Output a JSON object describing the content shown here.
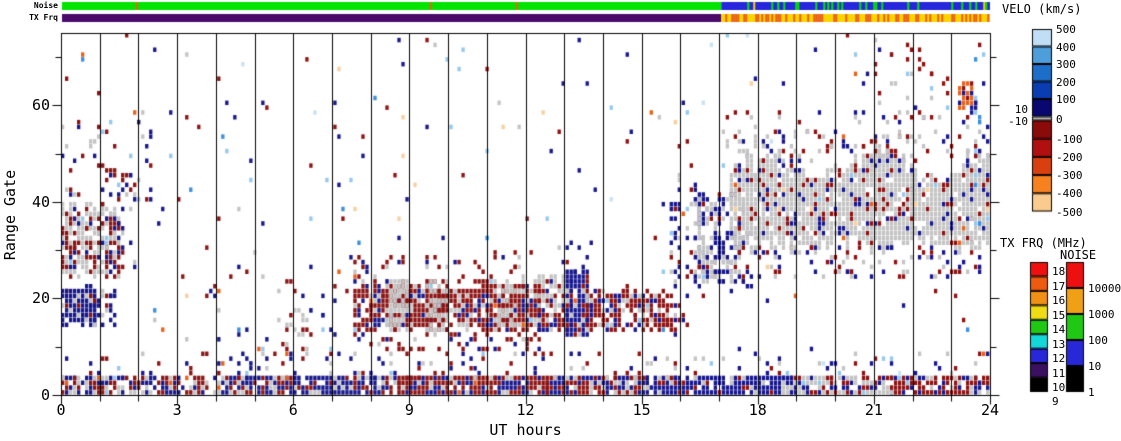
{
  "labels": {
    "noise_bar": "Noise",
    "tx_bar": "TX Frq",
    "y_axis": "Range Gate",
    "x_axis": "UT hours",
    "velo_title": "VELO (km/s)",
    "txfrq_title": "TX FRQ (MHz)",
    "noise_title": "NOISE"
  },
  "palette": {
    "navy": "#16168C",
    "darkred": "#8C1212",
    "gray": "#C4C4C4",
    "lightblue": "#96C8EE",
    "paleblue": "#C8E2F6",
    "medblue": "#3C8EDE",
    "orange": "#E8611A",
    "peach": "#F8CFA0",
    "green": "#00E400",
    "blue": "#2626DC",
    "purple": "#4A0A6A",
    "yellow": "#F8D400"
  },
  "chart_data": {
    "type": "heatmap",
    "plot_kind": "radar range-time velocity plot",
    "xlabel": "UT hours",
    "ylabel": "Range Gate",
    "xlim": [
      0,
      24
    ],
    "ylim": [
      0,
      75
    ],
    "x_major_ticks": [
      0,
      3,
      6,
      9,
      12,
      15,
      18,
      21,
      24
    ],
    "x_minor_step": 1,
    "y_major_ticks": [
      0,
      20,
      40,
      60
    ],
    "y_minor_step": 10,
    "grid": "vertical line at every hour",
    "colorbars": {
      "velo": {
        "title": "VELO (km/s)",
        "right_labels": [
          "500",
          "400",
          "300",
          "200",
          "100",
          "0",
          "-100",
          "-200",
          "-300",
          "-400",
          "-500"
        ],
        "left_labels": [
          "10",
          "-10"
        ],
        "colors": [
          "#C2DEF6",
          "#4E9EDC",
          "#1C6EC8",
          "#0A3CB2",
          "#080870",
          "#C0C0C0",
          "#8B0A0A",
          "#B01010",
          "#D84010",
          "#F5821E",
          "#FACB8E"
        ]
      },
      "tx": {
        "title": "TX FRQ (MHz)",
        "labels": [
          "18",
          "17",
          "16",
          "15",
          "14",
          "13",
          "12",
          "11",
          "10",
          "9"
        ],
        "colors": [
          "#EE1010",
          "#EE5A10",
          "#F09014",
          "#F0DC14",
          "#20C814",
          "#14D8D8",
          "#2828D8",
          "#3C1060",
          "#000000"
        ]
      },
      "noise": {
        "title": "NOISE",
        "labels": [
          "10000",
          "1000",
          "100",
          "10",
          "1"
        ],
        "colors": [
          "#EE1010",
          "#F0A014",
          "#20C814",
          "#2828D8",
          "#000000"
        ]
      }
    },
    "top_bars": {
      "noise": {
        "label": "Noise",
        "segments": [
          {
            "h0": 0,
            "h1": 17.05,
            "base": "green",
            "stripes": [
              [
                "orange",
                0.006
              ],
              [
                "blue",
                0.005
              ]
            ]
          },
          {
            "h0": 17.05,
            "h1": 24,
            "base": "blue",
            "stripes": [
              [
                "green",
                0.14
              ],
              [
                "yellow",
                0.015
              ]
            ]
          }
        ]
      },
      "tx": {
        "label": "TX Frq",
        "segments": [
          {
            "h0": 0,
            "h1": 17.05,
            "base": "purple",
            "stripes": []
          },
          {
            "h0": 17.05,
            "h1": 24,
            "base": "yellow",
            "stripes": [
              [
                "orange",
                0.45
              ]
            ]
          }
        ]
      }
    },
    "cells": {
      "cols": 232,
      "rows": 75,
      "seed": 7,
      "regions": [
        {
          "h0": 0,
          "h1": 24,
          "g0": 3,
          "g1": 75,
          "d": 0.013,
          "colors": [
            [
              "darkred",
              0.3
            ],
            [
              "navy",
              0.22
            ],
            [
              "lightblue",
              0.13
            ],
            [
              "paleblue",
              0.06
            ],
            [
              "medblue",
              0.08
            ],
            [
              "gray",
              0.09
            ],
            [
              "peach",
              0.07
            ],
            [
              "orange",
              0.05
            ]
          ]
        },
        {
          "h0": 0,
          "h1": 24,
          "g0": 3,
          "g1": 8,
          "d": 0.12,
          "colors": [
            [
              "navy",
              0.4
            ],
            [
              "darkred",
              0.3
            ],
            [
              "gray",
              0.25
            ],
            [
              "lightblue",
              0.05
            ]
          ]
        },
        {
          "h0": 17,
          "h1": 24,
          "g0": 50,
          "g1": 58,
          "d": 0.06,
          "colors": [
            [
              "gray",
              0.4
            ],
            [
              "darkred",
              0.35
            ],
            [
              "navy",
              0.25
            ]
          ]
        },
        {
          "h0": 0,
          "h1": 1.45,
          "g0": 23,
          "g1": 40,
          "d": 0.8,
          "edge_noise": 4,
          "colors": [
            [
              "gray",
              0.56
            ],
            [
              "darkred",
              0.3
            ],
            [
              "navy",
              0.12
            ],
            [
              "lightblue",
              0.02
            ]
          ]
        },
        {
          "h0": 1.2,
          "h1": 1.9,
          "g0": 26,
          "g1": 46,
          "d": 0.22,
          "streaky": true,
          "colors": [
            [
              "darkred",
              0.4
            ],
            [
              "navy",
              0.3
            ],
            [
              "gray",
              0.3
            ]
          ]
        },
        {
          "h0": 0.05,
          "h1": 0.9,
          "g0": 13,
          "g1": 23,
          "d": 0.93,
          "edge_noise": 2,
          "colors": [
            [
              "navy",
              0.86
            ],
            [
              "gray",
              0.08
            ],
            [
              "darkred",
              0.06
            ]
          ]
        },
        {
          "h0": 0.8,
          "h1": 1.35,
          "g0": 14,
          "g1": 21,
          "d": 0.35,
          "colors": [
            [
              "navy",
              0.7
            ],
            [
              "gray",
              0.2
            ],
            [
              "darkred",
              0.1
            ]
          ]
        },
        {
          "h0": 0,
          "h1": 2.3,
          "g0": 40,
          "g1": 56,
          "d": 0.1,
          "colors": [
            [
              "darkred",
              0.45
            ],
            [
              "navy",
              0.3
            ],
            [
              "gray",
              0.2
            ],
            [
              "lightblue",
              0.05
            ]
          ]
        },
        {
          "h0": 4,
          "h1": 7.6,
          "g0": 5,
          "g1": 26,
          "d": 0.05,
          "colors": [
            [
              "darkred",
              0.45
            ],
            [
              "navy",
              0.15
            ],
            [
              "gray",
              0.2
            ],
            [
              "orange",
              0.08
            ],
            [
              "lightblue",
              0.12
            ]
          ]
        },
        {
          "h0": 5.8,
          "h1": 6.4,
          "g0": 7,
          "g1": 17,
          "d": 0.3,
          "colors": [
            [
              "gray",
              0.6
            ],
            [
              "darkred",
              0.35
            ],
            [
              "navy",
              0.05
            ]
          ]
        },
        {
          "h0": 7.6,
          "h1": 12.4,
          "g0": 12,
          "g1": 24,
          "d": 0.87,
          "edge_noise": 3,
          "colors": [
            [
              "darkred",
              0.6
            ],
            [
              "gray",
              0.24
            ],
            [
              "navy",
              0.13
            ],
            [
              "orange",
              0.01
            ],
            [
              "lightblue",
              0.02
            ]
          ]
        },
        {
          "h0": 8.55,
          "h1": 8.95,
          "g0": 13,
          "g1": 23,
          "d": 0.75,
          "colors": [
            [
              "gray",
              0.85
            ],
            [
              "darkred",
              0.15
            ]
          ]
        },
        {
          "h0": 9.5,
          "h1": 9.95,
          "g0": 13,
          "g1": 23,
          "d": 0.7,
          "colors": [
            [
              "gray",
              0.8
            ],
            [
              "darkred",
              0.2
            ]
          ]
        },
        {
          "h0": 11.35,
          "h1": 11.75,
          "g0": 14,
          "g1": 22,
          "d": 0.6,
          "colors": [
            [
              "gray",
              0.75
            ],
            [
              "darkred",
              0.25
            ]
          ]
        },
        {
          "h0": 7.5,
          "h1": 12.5,
          "g0": 23,
          "g1": 29,
          "d": 0.12,
          "colors": [
            [
              "darkred",
              0.7
            ],
            [
              "navy",
              0.2
            ],
            [
              "gray",
              0.1
            ]
          ]
        },
        {
          "h0": 7.6,
          "h1": 12.4,
          "g0": 9,
          "g1": 12,
          "d": 0.25,
          "colors": [
            [
              "darkred",
              0.6
            ],
            [
              "navy",
              0.3
            ],
            [
              "gray",
              0.1
            ]
          ]
        },
        {
          "h0": 12.4,
          "h1": 13.15,
          "g0": 13,
          "g1": 24,
          "d": 0.7,
          "colors": [
            [
              "gray",
              0.5
            ],
            [
              "darkred",
              0.28
            ],
            [
              "navy",
              0.22
            ]
          ]
        },
        {
          "h0": 13.1,
          "h1": 13.65,
          "g0": 12,
          "g1": 25,
          "d": 0.9,
          "colors": [
            [
              "navy",
              0.78
            ],
            [
              "gray",
              0.1
            ],
            [
              "darkred",
              0.12
            ]
          ]
        },
        {
          "h0": 12.9,
          "h1": 13.7,
          "g0": 25,
          "g1": 31,
          "d": 0.2,
          "colors": [
            [
              "navy",
              0.7
            ],
            [
              "darkred",
              0.2
            ],
            [
              "gray",
              0.1
            ]
          ]
        },
        {
          "h0": 13.65,
          "h1": 15.7,
          "g0": 12,
          "g1": 23,
          "d": 0.8,
          "edge_noise": 3,
          "colors": [
            [
              "darkred",
              0.55
            ],
            [
              "gray",
              0.2
            ],
            [
              "navy",
              0.22
            ],
            [
              "lightblue",
              0.03
            ]
          ]
        },
        {
          "h0": 15.7,
          "h1": 16.2,
          "g0": 12,
          "g1": 20,
          "d": 0.35,
          "colors": [
            [
              "darkred",
              0.5
            ],
            [
              "navy",
              0.3
            ],
            [
              "gray",
              0.2
            ]
          ]
        },
        {
          "h0": 15.75,
          "h1": 17.5,
          "g0": 20,
          "g1": 46,
          "d": 0.5,
          "streaky": true,
          "edge_noise": 6,
          "colors": [
            [
              "navy",
              0.74
            ],
            [
              "gray",
              0.14
            ],
            [
              "darkred",
              0.08
            ],
            [
              "lightblue",
              0.04
            ]
          ]
        },
        {
          "h0": 16.35,
          "h1": 17.6,
          "g0": 23,
          "g1": 40,
          "d": 0.45,
          "streaky": true,
          "colors": [
            [
              "gray",
              0.82
            ],
            [
              "navy",
              0.12
            ],
            [
              "darkred",
              0.06
            ]
          ]
        },
        {
          "h0": 16.8,
          "h1": 18.1,
          "g0": 22,
          "g1": 33,
          "d": 0.5,
          "streaky": true,
          "colors": [
            [
              "navy",
              0.6
            ],
            [
              "gray",
              0.3
            ],
            [
              "darkred",
              0.1
            ]
          ]
        },
        {
          "h0": 17.3,
          "h1": 24,
          "g0": 29,
          "g1": 50,
          "d": 0.92,
          "edge_noise": 5,
          "wave": 2,
          "colors": [
            [
              "gray",
              0.8
            ],
            [
              "darkred",
              0.09
            ],
            [
              "navy",
              0.09
            ],
            [
              "lightblue",
              0.005
            ],
            [
              "orange",
              0.005
            ],
            [
              "peach",
              0.01
            ]
          ]
        },
        {
          "h0": 17.5,
          "h1": 24,
          "g0": 48,
          "g1": 54,
          "d": 0.15,
          "colors": [
            [
              "gray",
              0.5
            ],
            [
              "darkred",
              0.25
            ],
            [
              "navy",
              0.25
            ]
          ]
        },
        {
          "h0": 17.5,
          "h1": 24,
          "g0": 24,
          "g1": 30,
          "d": 0.18,
          "colors": [
            [
              "gray",
              0.4
            ],
            [
              "navy",
              0.35
            ],
            [
              "darkred",
              0.25
            ]
          ]
        },
        {
          "h0": 20.7,
          "h1": 23.4,
          "g0": 57,
          "g1": 66,
          "d": 0.09,
          "colors": [
            [
              "darkred",
              0.5
            ],
            [
              "gray",
              0.28
            ],
            [
              "navy",
              0.22
            ]
          ]
        },
        {
          "h0": 20.8,
          "h1": 22.4,
          "g0": 68,
          "g1": 73,
          "d": 0.1,
          "colors": [
            [
              "darkred",
              0.5
            ],
            [
              "gray",
              0.3
            ],
            [
              "navy",
              0.2
            ]
          ]
        },
        {
          "h0": 23.25,
          "h1": 23.5,
          "g0": 59,
          "g1": 64,
          "d": 0.7,
          "colors": [
            [
              "orange",
              0.65
            ],
            [
              "darkred",
              0.25
            ],
            [
              "navy",
              0.1
            ]
          ]
        },
        {
          "h0": 23.6,
          "h1": 24,
          "g0": 35,
          "g1": 70,
          "d": 0.22,
          "streaky": true,
          "colors": [
            [
              "navy",
              0.6
            ],
            [
              "medblue",
              0.2
            ],
            [
              "lightblue",
              0.2
            ]
          ]
        },
        {
          "h0": 0,
          "h1": 6,
          "g0": 0,
          "g1": 3.6,
          "d": 0.82,
          "colors": [
            [
              "navy",
              0.34
            ],
            [
              "darkred",
              0.3
            ],
            [
              "gray",
              0.3
            ],
            [
              "lightblue",
              0.03
            ],
            [
              "orange",
              0.03
            ]
          ]
        },
        {
          "h0": 6,
          "h1": 8.7,
          "g0": 0,
          "g1": 3.6,
          "d": 0.88,
          "colors": [
            [
              "navy",
              0.62
            ],
            [
              "darkred",
              0.14
            ],
            [
              "gray",
              0.22
            ],
            [
              "lightblue",
              0.02
            ]
          ]
        },
        {
          "h0": 8.7,
          "h1": 12.6,
          "g0": 0,
          "g1": 3.6,
          "d": 0.9,
          "colors": [
            [
              "darkred",
              0.56
            ],
            [
              "navy",
              0.3
            ],
            [
              "gray",
              0.13
            ],
            [
              "orange",
              0.01
            ]
          ]
        },
        {
          "h0": 12.6,
          "h1": 15.2,
          "g0": 0,
          "g1": 3.6,
          "d": 0.88,
          "colors": [
            [
              "darkred",
              0.45
            ],
            [
              "navy",
              0.37
            ],
            [
              "gray",
              0.18
            ]
          ]
        },
        {
          "h0": 15.2,
          "h1": 18.9,
          "g0": 0,
          "g1": 3.6,
          "d": 0.9,
          "colors": [
            [
              "navy",
              0.68
            ],
            [
              "gray",
              0.2
            ],
            [
              "darkred",
              0.1
            ],
            [
              "lightblue",
              0.02
            ]
          ]
        },
        {
          "h0": 18.9,
          "h1": 21.5,
          "g0": 0,
          "g1": 3.6,
          "d": 0.85,
          "colors": [
            [
              "gray",
              0.45
            ],
            [
              "navy",
              0.25
            ],
            [
              "darkred",
              0.28
            ],
            [
              "lightblue",
              0.02
            ]
          ]
        },
        {
          "h0": 21.5,
          "h1": 24,
          "g0": 0,
          "g1": 3.6,
          "d": 0.85,
          "colors": [
            [
              "darkred",
              0.5
            ],
            [
              "navy",
              0.28
            ],
            [
              "gray",
              0.2
            ],
            [
              "lightblue",
              0.02
            ]
          ]
        }
      ]
    }
  }
}
